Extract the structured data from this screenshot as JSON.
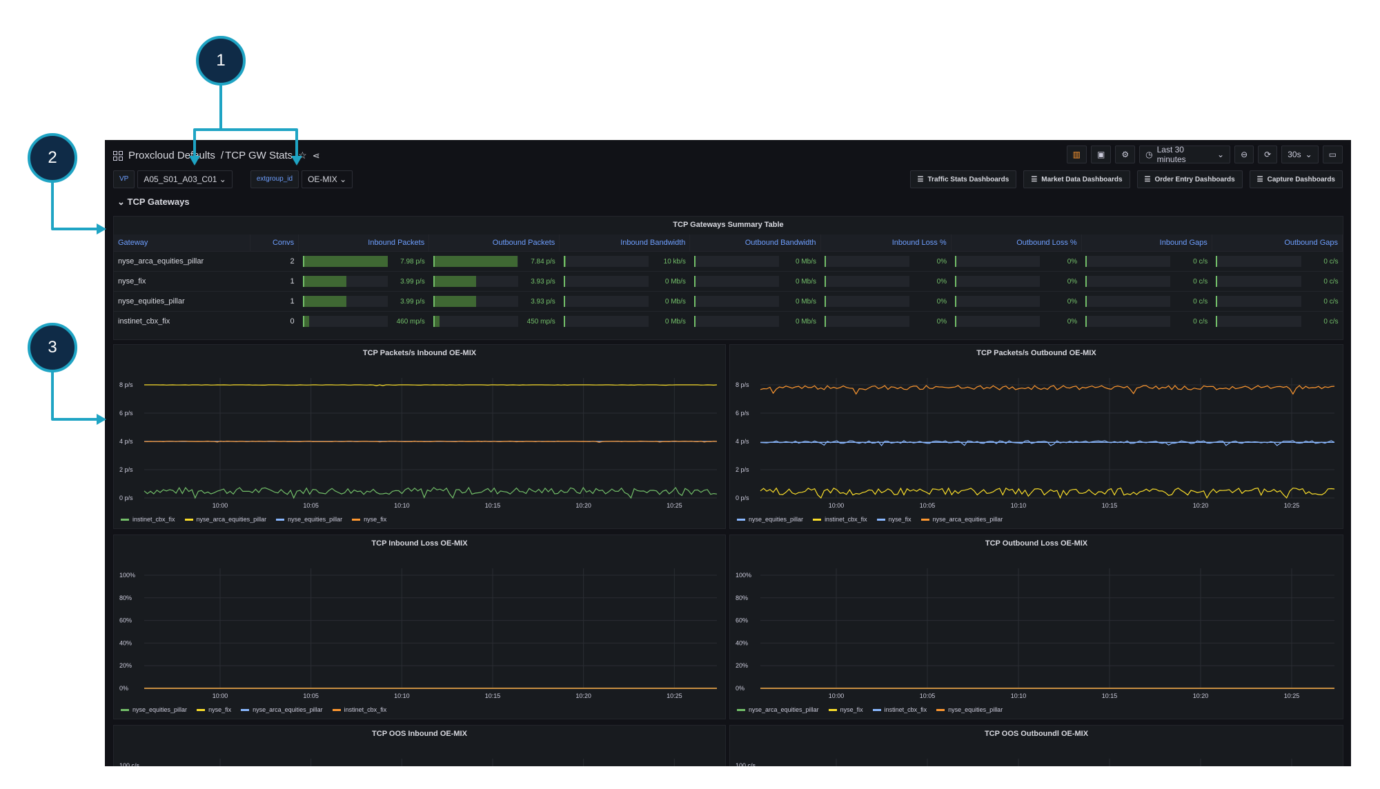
{
  "callouts": [
    "1",
    "2",
    "3"
  ],
  "topbar": {
    "breadcrumb_folder": "Proxcloud Defaults",
    "breadcrumb_sep": "/",
    "breadcrumb_dashboard": "TCP GW Stats",
    "time_range": "Last 30 minutes",
    "refresh": "30s"
  },
  "variables": [
    {
      "label": "VP",
      "value": "A05_S01_A03_C01"
    },
    {
      "label": "extgroup_id",
      "value": "OE-MIX"
    }
  ],
  "links": [
    "Traffic Stats Dashboards",
    "Market Data Dashboards",
    "Order Entry Dashboards",
    "Capture Dashboards"
  ],
  "row_title": "TCP Gateways",
  "summary": {
    "title": "TCP Gateways Summary Table",
    "columns": [
      "Gateway",
      "Convs",
      "Inbound Packets",
      "Outbound Packets",
      "Inbound Bandwidth",
      "Outbound Bandwidth",
      "Inbound Loss %",
      "Outbound Loss %",
      "Inbound Gaps",
      "Outbound Gaps"
    ],
    "rows": [
      {
        "gateway": "nyse_arca_equities_pillar",
        "convs": "2",
        "cells": [
          "7.98 p/s",
          "7.84 p/s",
          "10 kb/s",
          "0 Mb/s",
          "0%",
          "0%",
          "0 c/s",
          "0 c/s"
        ],
        "levels": [
          0.99,
          0.98,
          0.01,
          0,
          0,
          0,
          0,
          0
        ]
      },
      {
        "gateway": "nyse_fix",
        "convs": "1",
        "cells": [
          "3.99 p/s",
          "3.93 p/s",
          "0 Mb/s",
          "0 Mb/s",
          "0%",
          "0%",
          "0 c/s",
          "0 c/s"
        ],
        "levels": [
          0.5,
          0.49,
          0,
          0,
          0,
          0,
          0,
          0
        ]
      },
      {
        "gateway": "nyse_equities_pillar",
        "convs": "1",
        "cells": [
          "3.99 p/s",
          "3.93 p/s",
          "0 Mb/s",
          "0 Mb/s",
          "0%",
          "0%",
          "0 c/s",
          "0 c/s"
        ],
        "levels": [
          0.5,
          0.49,
          0,
          0,
          0,
          0,
          0,
          0
        ]
      },
      {
        "gateway": "instinet_cbx_fix",
        "convs": "0",
        "cells": [
          "460 mp/s",
          "450 mp/s",
          "0 Mb/s",
          "0 Mb/s",
          "0%",
          "0%",
          "0 c/s",
          "0 c/s"
        ],
        "levels": [
          0.06,
          0.06,
          0,
          0,
          0,
          0,
          0,
          0
        ]
      }
    ]
  },
  "colors": {
    "green": "#73bf69",
    "yellow": "#fade2a",
    "blue": "#8ab8ff",
    "orange": "#ff9830"
  },
  "panels": [
    {
      "title": "TCP Packets/s Inbound OE-MIX",
      "type": "line",
      "yticks": [
        "0 p/s",
        "2 p/s",
        "4 p/s",
        "6 p/s",
        "8 p/s"
      ],
      "ymax": 8,
      "xticks": [
        "10:00",
        "10:05",
        "10:10",
        "10:15",
        "10:20",
        "10:25"
      ],
      "series": [
        {
          "name": "instinet_cbx_fix",
          "color": "#73bf69",
          "level": 0.5,
          "noise": 0.25
        },
        {
          "name": "nyse_arca_equities_pillar",
          "color": "#fade2a",
          "level": 8,
          "noise": 0.02
        },
        {
          "name": "nyse_equities_pillar",
          "color": "#8ab8ff",
          "level": 4,
          "noise": 0.0
        },
        {
          "name": "nyse_fix",
          "color": "#ff9830",
          "level": 4,
          "noise": 0.02
        }
      ]
    },
    {
      "title": "TCP Packets/s Outbound OE-MIX",
      "type": "line",
      "yticks": [
        "0 p/s",
        "2 p/s",
        "4 p/s",
        "6 p/s",
        "8 p/s"
      ],
      "ymax": 8,
      "xticks": [
        "10:00",
        "10:05",
        "10:10",
        "10:15",
        "10:20",
        "10:25"
      ],
      "series": [
        {
          "name": "nyse_equities_pillar",
          "color": "#8ab8ff",
          "level": 3.95,
          "noise": 0.1
        },
        {
          "name": "instinet_cbx_fix",
          "color": "#fade2a",
          "level": 0.45,
          "noise": 0.25
        },
        {
          "name": "nyse_fix",
          "color": "#8ab8ff",
          "level": 3.93,
          "noise": 0.0
        },
        {
          "name": "nyse_arca_equities_pillar",
          "color": "#ff9830",
          "level": 7.8,
          "noise": 0.15
        }
      ]
    },
    {
      "title": "TCP Inbound Loss OE-MIX",
      "type": "line",
      "yticks": [
        "0%",
        "20%",
        "40%",
        "60%",
        "80%",
        "100%"
      ],
      "ymax": 100,
      "xticks": [
        "10:00",
        "10:05",
        "10:10",
        "10:15",
        "10:20",
        "10:25"
      ],
      "series": [
        {
          "name": "nyse_equities_pillar",
          "color": "#73bf69",
          "level": 0,
          "noise": 0
        },
        {
          "name": "nyse_fix",
          "color": "#fade2a",
          "level": 0,
          "noise": 0
        },
        {
          "name": "nyse_arca_equities_pillar",
          "color": "#8ab8ff",
          "level": 0,
          "noise": 0
        },
        {
          "name": "instinet_cbx_fix",
          "color": "#ff9830",
          "level": 0,
          "noise": 0
        }
      ]
    },
    {
      "title": "TCP Outbound Loss OE-MIX",
      "type": "line",
      "yticks": [
        "0%",
        "20%",
        "40%",
        "60%",
        "80%",
        "100%"
      ],
      "ymax": 100,
      "xticks": [
        "10:00",
        "10:05",
        "10:10",
        "10:15",
        "10:20",
        "10:25"
      ],
      "series": [
        {
          "name": "nyse_arca_equities_pillar",
          "color": "#73bf69",
          "level": 0,
          "noise": 0
        },
        {
          "name": "nyse_fix",
          "color": "#fade2a",
          "level": 0,
          "noise": 0
        },
        {
          "name": "instinet_cbx_fix",
          "color": "#8ab8ff",
          "level": 0,
          "noise": 0
        },
        {
          "name": "nyse_equities_pillar",
          "color": "#ff9830",
          "level": 0,
          "noise": 0
        }
      ]
    },
    {
      "title": "TCP OOS Inbound OE-MIX",
      "type": "line",
      "yticks": [
        "100 c/s"
      ],
      "ymax": 100,
      "xticks": [],
      "series": []
    },
    {
      "title": "TCP OOS Outboundl OE-MIX",
      "type": "line",
      "yticks": [
        "100 c/s"
      ],
      "ymax": 100,
      "xticks": [],
      "series": []
    }
  ]
}
